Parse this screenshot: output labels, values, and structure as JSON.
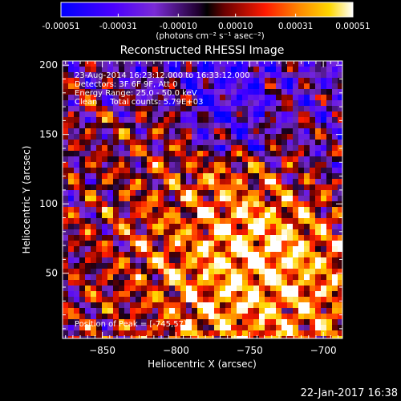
{
  "chart_data": {
    "type": "heatmap",
    "title": "Reconstructed RHESSI Image",
    "xlabel": "Heliocentric X (arcsec)",
    "ylabel": "Heliocentric Y (arcsec)",
    "xlim": [
      -877,
      -687
    ],
    "ylim": [
      3,
      203
    ],
    "x_ticks": [
      -850,
      -800,
      -750,
      -700
    ],
    "y_ticks": [
      50,
      100,
      150,
      200
    ],
    "colorbar": {
      "min": -0.00051,
      "max": 0.00051,
      "ticks": [
        -0.00051,
        -0.00031,
        -0.0001,
        0.0001,
        0.00031,
        0.00051
      ],
      "tick_labels": [
        "-0.00051",
        "-0.00031",
        "-0.00010",
        "0.00010",
        "0.00031",
        "0.00051"
      ],
      "label": "(photons cm⁻² s⁻¹ asec⁻²)",
      "colors": [
        "#0000ff",
        "#5500ff",
        "#8a2be2",
        "#000000",
        "#8b0000",
        "#ff0000",
        "#ff8c00",
        "#ffd700",
        "#ffffff"
      ]
    },
    "annotations": [
      "23-Aug-2014 16:23:12.000 to 16:33:12.000",
      "Detectors: 3F 6F 9F, Att 0",
      "Energy Range: 25.0 - 50.0 keV",
      "Clean     Total counts: 5.79E+03"
    ],
    "peak_label": "Position of Peak = [-745,57]",
    "peak": [
      -745,
      57
    ]
  },
  "timestamp": "22-Jan-2017 16:38"
}
